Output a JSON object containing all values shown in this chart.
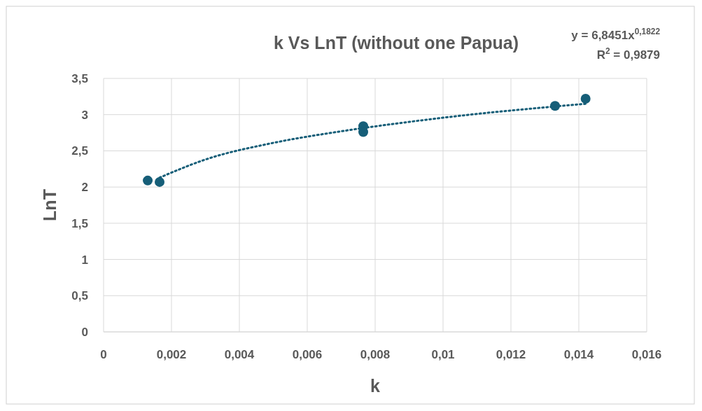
{
  "chart_data": {
    "type": "scatter",
    "title": "k Vs LnT (without one Papua)",
    "xlabel": "k",
    "ylabel": "LnT",
    "annotations": [
      "y = 6,8451x$^{0,1822}$",
      "R$^{2}$ = 0,9879"
    ],
    "series": [
      {
        "marker": "circle",
        "color": "#165e78",
        "x": [
          0.0013,
          0.00165,
          0.00765,
          0.00765,
          0.0133,
          0.0142
        ],
        "values": [
          2.09,
          2.07,
          2.84,
          2.76,
          3.12,
          3.22
        ]
      },
      {
        "type": "line",
        "color": "#165e78",
        "line_style": "dotted",
        "x": [
          0.00165,
          0.003,
          0.005,
          0.007,
          0.009,
          0.011,
          0.013,
          0.0142
        ],
        "values": [
          2.13,
          2.38,
          2.61,
          2.77,
          2.9,
          3.01,
          3.1,
          3.15
        ]
      }
    ],
    "xlim": [
      0,
      0.016
    ],
    "xticks": [
      0,
      {
        "value": 0.002,
        "label": "0,002"
      },
      {
        "value": 0.004,
        "label": "0,004"
      },
      {
        "value": 0.006,
        "label": "0,006"
      },
      {
        "value": 0.008,
        "label": "0,008"
      },
      {
        "value": 0.01,
        "label": "0,01"
      },
      {
        "value": 0.012,
        "label": "0,012"
      },
      {
        "value": 0.014,
        "label": "0,014"
      },
      {
        "value": 0.016,
        "label": "0,016"
      }
    ],
    "ylim": [
      0,
      3.5
    ],
    "yticks": [
      0,
      {
        "value": 0.5,
        "label": "0,5"
      },
      1,
      {
        "value": 1.5,
        "label": "1,5"
      },
      2,
      {
        "value": 2.5,
        "label": "2,5"
      },
      3,
      {
        "value": 3.5,
        "label": "3,5"
      }
    ],
    "grid": true
  }
}
